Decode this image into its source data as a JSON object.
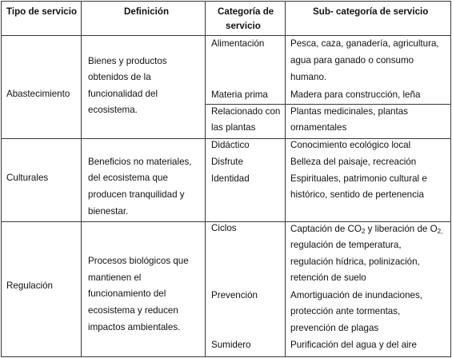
{
  "headers": {
    "tipo": "Tipo de servicio",
    "definicion": "Definición",
    "categoria_1": "Categoría de",
    "categoria_2": "servicio",
    "subcategoria": "Sub- categoría de servicio"
  },
  "abastecimiento": {
    "tipo": "Abastecimiento",
    "definicion": [
      "Bienes y productos",
      "obtenidos de la",
      "funcionalidad del",
      "ecosistema."
    ],
    "cat_alimentacion": "Alimentación",
    "sub_alimentacion": [
      "Pesca, caza, ganadería, agricultura,",
      "agua para ganado o consumo",
      "humano."
    ],
    "cat_materia": "Materia prima",
    "sub_materia": "Madera para construcción, leña",
    "cat_plantas": [
      "Relacionado con",
      "las plantas"
    ],
    "sub_plantas": [
      "Plantas medicinales, plantas",
      "ornamentales"
    ]
  },
  "culturales": {
    "tipo": "Culturales",
    "definicion": [
      "Beneficios no materiales,",
      "del ecosistema que",
      "producen tranquilidad y",
      "bienestar."
    ],
    "cat_didactico": "Didáctico",
    "sub_didactico": "Conocimiento ecológico local",
    "cat_disfrute": "Disfrute",
    "sub_disfrute": "Belleza del paisaje, recreación",
    "cat_identidad": "Identidad",
    "sub_identidad": [
      "Espirituales, patrimonio cultural e",
      "histórico, sentido de pertenencia"
    ]
  },
  "regulacion": {
    "tipo": "Regulación",
    "definicion": [
      "Procesos biológicos que",
      "mantienen el",
      "funcionamiento del",
      "ecosistema y reducen",
      "impactos ambientales."
    ],
    "cat_ciclos": "Ciclos",
    "sub_ciclos_a": "Captación de CO",
    "sub_ciclos_sub1": "2",
    "sub_ciclos_b": " y liberación de O",
    "sub_ciclos_sub2": "2,",
    "sub_ciclos_rest": [
      "regulación de temperatura,",
      "regulación hídrica, polinización,",
      "retención de suelo"
    ],
    "cat_prevencion": "Prevención",
    "sub_prevencion": [
      "Amortiguación de inundaciones,",
      "protección ante tormentas,",
      "prevención de plagas"
    ],
    "cat_sumidero": "Sumidero",
    "sub_sumidero": "Purificación del agua y del aire"
  }
}
